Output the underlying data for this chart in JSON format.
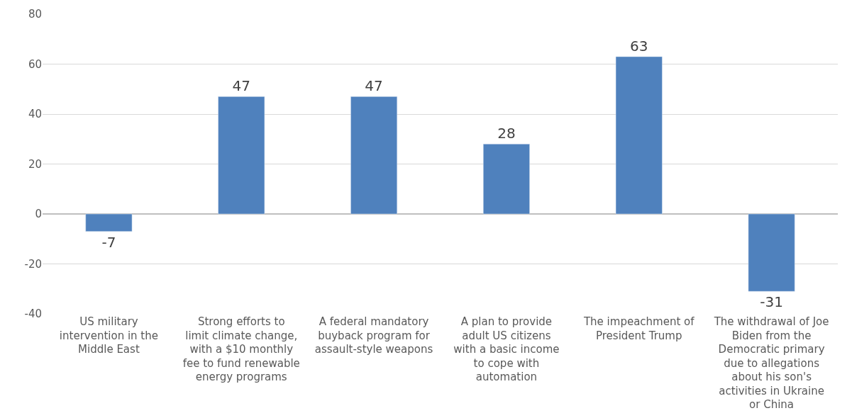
{
  "chart_data": {
    "type": "bar",
    "categories": [
      "US military intervention in the Middle East",
      "Strong efforts to limit climate change, with a $10 monthly fee to fund renewable energy programs",
      "A federal mandatory buyback program for assault-style weapons",
      "A plan to provide adult US citizens with a basic income to cope with automation",
      "The impeachment of President Trump",
      "The withdrawal of Joe Biden from the Democratic primary due to allegations about his son's activities in Ukraine or China"
    ],
    "values": [
      -7,
      47,
      47,
      28,
      63,
      -31
    ],
    "color": "#4f81bd",
    "ylim": [
      -40,
      80
    ],
    "yticks": [
      -40,
      -20,
      0,
      20,
      40,
      60,
      80
    ],
    "grid": "y",
    "data_labels": true,
    "legend": false
  }
}
